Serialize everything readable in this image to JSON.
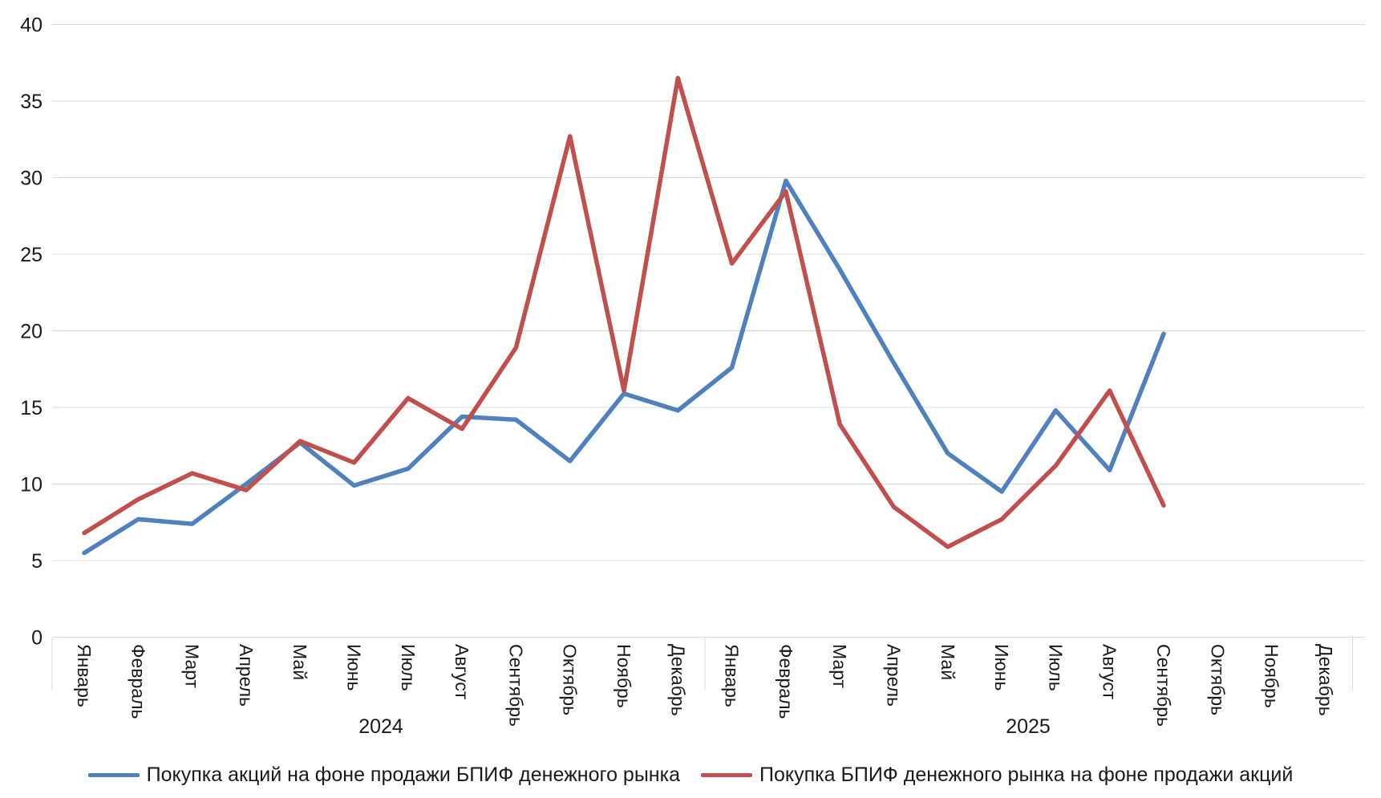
{
  "chart_data": {
    "type": "line",
    "title": "",
    "xlabel": "",
    "ylabel": "",
    "ylim": [
      0,
      40
    ],
    "ytick_step": 5,
    "grid": "horizontal",
    "grid_color": "#d9d9d9",
    "legend_position": "bottom",
    "categories": [
      "Январь",
      "Февраль",
      "Март",
      "Апрель",
      "Май",
      "Июнь",
      "Июль",
      "Август",
      "Сентябрь",
      "Октябрь",
      "Ноябрь",
      "Декабрь",
      "Январь",
      "Февраль",
      "Март",
      "Апрель",
      "Май",
      "Июнь",
      "Июль",
      "Август",
      "Сентябрь",
      "Октябрь",
      "Ноябрь",
      "Декабрь"
    ],
    "year_groups": [
      {
        "label": "2024",
        "start": 0,
        "end": 11
      },
      {
        "label": "2025",
        "start": 12,
        "end": 23
      }
    ],
    "series": [
      {
        "name": "Покупка акций на фоне продажи БПИФ денежного рынка",
        "color": "#4F81BD",
        "values": [
          5.5,
          7.7,
          7.4,
          10.0,
          12.7,
          9.9,
          11.0,
          14.4,
          14.2,
          11.5,
          15.9,
          14.8,
          17.6,
          29.8,
          24.0,
          17.9,
          12.0,
          9.5,
          14.8,
          10.9,
          19.8,
          null,
          null,
          null
        ]
      },
      {
        "name": "Покупка БПИФ денежного рынка на фоне продажи акций",
        "color": "#C0504D",
        "values": [
          6.8,
          9.0,
          10.7,
          9.6,
          12.8,
          11.4,
          15.6,
          13.6,
          18.9,
          32.7,
          16.1,
          36.5,
          24.4,
          29.1,
          13.9,
          8.5,
          5.9,
          7.7,
          11.2,
          16.1,
          8.6,
          null,
          null,
          null
        ]
      }
    ]
  }
}
